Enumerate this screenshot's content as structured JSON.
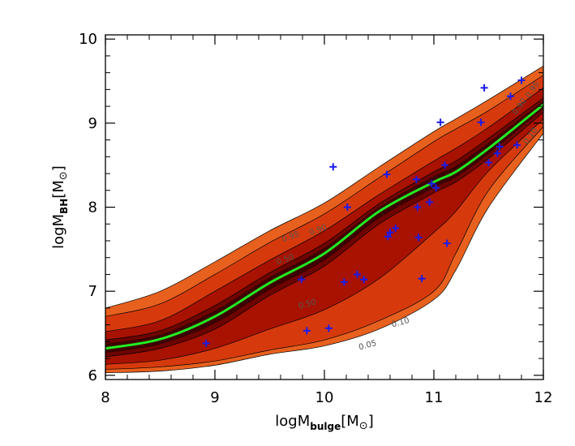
{
  "chart_data": {
    "type": "line",
    "title": "",
    "xlabel": {
      "main": "logM",
      "sub": "bulge",
      "unit_open": "[M",
      "unit_sym": "⊙",
      "unit_close": "]"
    },
    "ylabel": {
      "main": "logM",
      "sub": "BH",
      "unit_open": "[M",
      "unit_sym": "⊙",
      "unit_close": "]"
    },
    "xlim": [
      8,
      12
    ],
    "ylim": [
      5.95,
      10.05
    ],
    "xticks": [
      "8",
      "9",
      "10",
      "11",
      "12"
    ],
    "yticks": [
      "6",
      "7",
      "8",
      "9",
      "10"
    ],
    "grid": false,
    "colors": {
      "band_95": "#e8601e",
      "band_90": "#d63a0c",
      "band_50": "#a81200",
      "band_10": "#6e0400",
      "band_core": "#3c0000",
      "median": "#22ee22",
      "points": "#1a1aee"
    },
    "x": [
      8,
      8.5,
      9,
      9.5,
      10,
      10.5,
      11,
      11.2,
      11.5,
      12
    ],
    "median": [
      6.32,
      6.43,
      6.7,
      7.1,
      7.45,
      7.95,
      8.3,
      8.42,
      8.7,
      9.22
    ],
    "bands": [
      {
        "level": "0.95",
        "upper": [
          6.8,
          7.0,
          7.35,
          7.72,
          8.05,
          8.48,
          8.9,
          9.05,
          9.28,
          9.68
        ],
        "lower": [
          6.03,
          6.05,
          6.12,
          6.25,
          6.35,
          6.55,
          6.9,
          7.25,
          8.0,
          8.88
        ]
      },
      {
        "level": "0.90",
        "upper": [
          6.7,
          6.85,
          7.2,
          7.58,
          7.92,
          8.35,
          8.78,
          8.93,
          9.15,
          9.57
        ],
        "lower": [
          6.07,
          6.1,
          6.17,
          6.3,
          6.42,
          6.65,
          7.0,
          7.45,
          8.2,
          8.96
        ]
      },
      {
        "level": "0.50",
        "upper": [
          6.52,
          6.65,
          7.0,
          7.37,
          7.72,
          8.15,
          8.55,
          8.7,
          8.95,
          9.42
        ],
        "lower": [
          6.13,
          6.18,
          6.32,
          6.55,
          6.78,
          7.15,
          7.7,
          7.95,
          8.43,
          9.05
        ]
      },
      {
        "level": "0.10",
        "upper": [
          6.42,
          6.53,
          6.83,
          7.22,
          7.57,
          8.04,
          8.42,
          8.55,
          8.82,
          9.3
        ],
        "lower": [
          6.22,
          6.32,
          6.55,
          6.95,
          7.3,
          7.8,
          8.17,
          8.3,
          8.58,
          9.13
        ]
      }
    ],
    "contour_labels": [
      {
        "text": "0.95",
        "x": 9.7,
        "y": 7.62,
        "angle": -20
      },
      {
        "text": "0.90",
        "x": 9.95,
        "y": 7.7,
        "angle": -20
      },
      {
        "text": "0.50",
        "x": 9.65,
        "y": 7.35,
        "angle": -20
      },
      {
        "text": "0.50",
        "x": 9.85,
        "y": 6.82,
        "angle": -15
      },
      {
        "text": "0.10",
        "x": 10.7,
        "y": 6.6,
        "angle": -15
      },
      {
        "text": "0.05",
        "x": 10.4,
        "y": 6.33,
        "angle": -15
      },
      {
        "text": "0.95",
        "x": 11.92,
        "y": 9.38,
        "angle": -55
      },
      {
        "text": "0.90",
        "x": 11.8,
        "y": 9.18,
        "angle": -55
      },
      {
        "text": "0.10",
        "x": 11.9,
        "y": 8.83,
        "angle": -55
      }
    ],
    "points": [
      {
        "x": 8.92,
        "y": 6.38
      },
      {
        "x": 9.79,
        "y": 7.14
      },
      {
        "x": 9.84,
        "y": 6.53
      },
      {
        "x": 10.04,
        "y": 6.56
      },
      {
        "x": 10.08,
        "y": 8.48
      },
      {
        "x": 10.18,
        "y": 7.11
      },
      {
        "x": 10.21,
        "y": 8.0
      },
      {
        "x": 10.3,
        "y": 7.2
      },
      {
        "x": 10.36,
        "y": 7.14
      },
      {
        "x": 10.57,
        "y": 8.39
      },
      {
        "x": 10.58,
        "y": 7.65
      },
      {
        "x": 10.6,
        "y": 7.7
      },
      {
        "x": 10.65,
        "y": 7.75
      },
      {
        "x": 10.84,
        "y": 8.33
      },
      {
        "x": 10.85,
        "y": 8.0
      },
      {
        "x": 10.86,
        "y": 7.64
      },
      {
        "x": 10.89,
        "y": 7.15
      },
      {
        "x": 10.96,
        "y": 8.06
      },
      {
        "x": 10.98,
        "y": 8.28
      },
      {
        "x": 11.02,
        "y": 8.23
      },
      {
        "x": 11.06,
        "y": 9.01
      },
      {
        "x": 11.1,
        "y": 8.5
      },
      {
        "x": 11.12,
        "y": 7.57
      },
      {
        "x": 11.43,
        "y": 9.01
      },
      {
        "x": 11.46,
        "y": 9.42
      },
      {
        "x": 11.5,
        "y": 8.53
      },
      {
        "x": 11.58,
        "y": 8.64
      },
      {
        "x": 11.6,
        "y": 8.72
      },
      {
        "x": 11.7,
        "y": 9.32
      },
      {
        "x": 11.76,
        "y": 8.74
      },
      {
        "x": 11.8,
        "y": 9.51
      }
    ]
  }
}
